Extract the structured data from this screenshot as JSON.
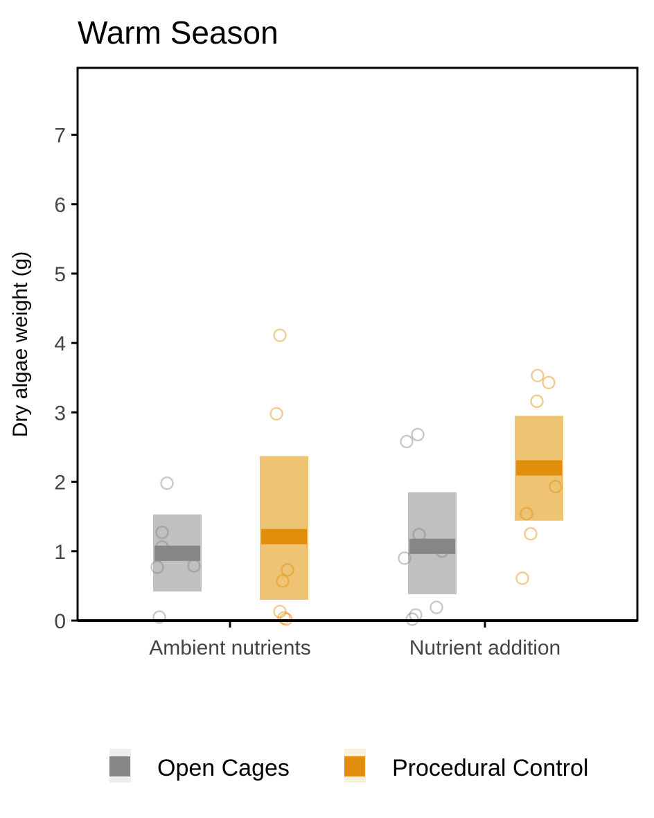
{
  "chart_data": {
    "type": "scatter",
    "title": "Warm Season",
    "xlabel": "",
    "ylabel": "Dry algae weight (g)",
    "ylim": [
      0,
      8
    ],
    "yticks": [
      "0",
      "1",
      "2",
      "3",
      "4",
      "5",
      "6",
      "7"
    ],
    "categories": [
      "Ambient nutrients",
      "Nutrient addition"
    ],
    "grid": false,
    "legend_position": "bottom",
    "series": [
      {
        "name": "Open Cages",
        "color": "#868686",
        "band_color": "#bdbdbd",
        "mean": [
          0.97,
          1.07
        ],
        "interval_low": [
          0.42,
          0.38
        ],
        "interval_high": [
          1.53,
          1.85
        ],
        "points": [
          [
            1.98,
            1.27,
            1.06,
            0.77,
            0.79,
            0.05
          ],
          [
            2.68,
            2.58,
            1.24,
            1.0,
            0.9,
            0.19,
            0.08,
            0.02
          ]
        ]
      },
      {
        "name": "Procedural Control",
        "color": "#E08E0B",
        "band_color": "#edc06d",
        "mean": [
          1.21,
          2.2
        ],
        "interval_low": [
          0.3,
          1.44
        ],
        "interval_high": [
          2.37,
          2.95
        ],
        "points": [
          [
            4.11,
            2.98,
            0.73,
            0.57,
            0.13,
            0.04,
            0.02
          ],
          [
            3.53,
            3.43,
            3.16,
            1.93,
            1.54,
            1.25,
            0.61
          ]
        ]
      }
    ]
  }
}
